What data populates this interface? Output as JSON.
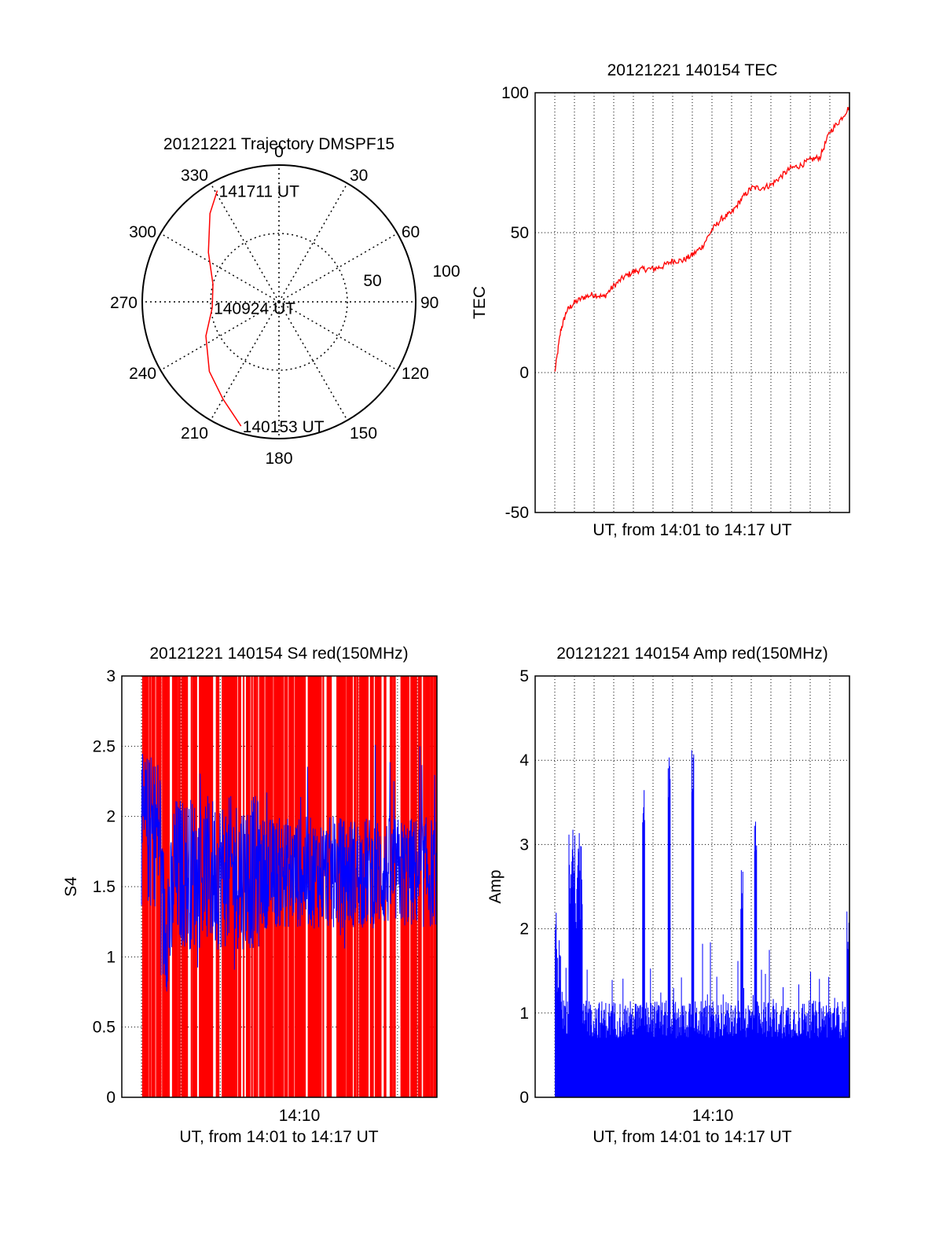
{
  "colors": {
    "red": "#ff0000",
    "blue": "#0000ff",
    "black": "#000000"
  },
  "chart_data": [
    {
      "type": "polar",
      "title": "20121221 Trajectory DMSPF15",
      "angle_labels": [
        "0",
        "30",
        "60",
        "90",
        "120",
        "150",
        "180",
        "210",
        "240",
        "270",
        "300",
        "330"
      ],
      "radius_labels": [
        "50",
        "100"
      ],
      "series": [
        {
          "color": "#ff0000",
          "points": [
            {
              "az": 197,
              "r": 95
            },
            {
              "az": 210,
              "r": 82
            },
            {
              "az": 225,
              "r": 72
            },
            {
              "az": 245,
              "r": 59
            },
            {
              "az": 265,
              "r": 49
            },
            {
              "az": 285,
              "r": 50
            },
            {
              "az": 305,
              "r": 63
            },
            {
              "az": 322,
              "r": 82
            },
            {
              "az": 331,
              "r": 93
            }
          ]
        }
      ],
      "annotations": [
        {
          "text": "141711 UT",
          "az": 331,
          "r": 93
        },
        {
          "text": "140924 UT",
          "az": 265,
          "r": 49
        },
        {
          "text": "140153 UT",
          "az": 197,
          "r": 95
        }
      ]
    },
    {
      "type": "line",
      "title": "20121221 140154 TEC",
      "xlabel": "UT, from 14:01 to 14:17 UT",
      "ylabel": "TEC",
      "yticks": [
        "100",
        "50",
        "0",
        "-50"
      ],
      "ylim": [
        -50,
        100
      ],
      "xlim": [
        0,
        16
      ],
      "grid": true,
      "series": [
        {
          "color": "#ff0000",
          "x": [
            1.0,
            1.3,
            1.6,
            2.0,
            2.5,
            3.0,
            3.5,
            4.0,
            4.5,
            5.0,
            5.5,
            6.0,
            6.5,
            7.0,
            7.5,
            8.0,
            8.5,
            9.0,
            9.5,
            10.0,
            10.5,
            11.0,
            11.5,
            12.0,
            12.5,
            13.0,
            13.5,
            14.0,
            14.5,
            15.0,
            15.5,
            16.0
          ],
          "y": [
            0,
            15,
            22,
            25,
            27,
            28,
            27,
            31,
            34,
            36,
            37,
            37,
            38,
            40,
            40,
            42,
            45,
            51,
            55,
            57,
            62,
            66,
            66,
            67,
            70,
            73,
            74,
            76,
            77,
            86,
            90,
            95
          ]
        }
      ]
    },
    {
      "type": "bar",
      "title": "20121221 140154 S4 red(150MHz)",
      "xlabel": "UT, from 14:01 to 14:17 UT",
      "ylabel": "S4",
      "xtick_label": "14:10",
      "yticks": [
        "3",
        "2.5",
        "2",
        "1.5",
        "1",
        "0.5",
        "0"
      ],
      "ylim": [
        0,
        3
      ],
      "xlim": [
        0,
        16
      ],
      "grid": true,
      "series": [
        {
          "name": "",
          "color": "#ff0000",
          "style": "dense vertical bars up to 3"
        },
        {
          "name": "",
          "color": "#0000ff",
          "style": "line",
          "approx_mean": 1.6,
          "approx_range": [
            0.7,
            3.0
          ]
        }
      ]
    },
    {
      "type": "bar",
      "title": "20121221 140154 Amp red(150MHz)",
      "xlabel": "UT, from 14:01 to 14:17 UT",
      "ylabel": "Amp",
      "xtick_label": "14:10",
      "yticks": [
        "5",
        "4",
        "3",
        "2",
        "1",
        "0"
      ],
      "ylim": [
        0,
        5
      ],
      "xlim": [
        0,
        16
      ],
      "grid": true,
      "series": [
        {
          "color": "#0000ff",
          "peaks": [
            {
              "x": 1.0,
              "y": 2.2
            },
            {
              "x": 1.9,
              "y": 2.9
            },
            {
              "x": 2.2,
              "y": 3.2
            },
            {
              "x": 5.5,
              "y": 3.8
            },
            {
              "x": 6.8,
              "y": 4.05
            },
            {
              "x": 8.0,
              "y": 4.2
            },
            {
              "x": 10.5,
              "y": 2.8
            },
            {
              "x": 11.2,
              "y": 3.3
            },
            {
              "x": 15.9,
              "y": 2.3
            }
          ],
          "baseline": 0.9
        }
      ]
    }
  ]
}
